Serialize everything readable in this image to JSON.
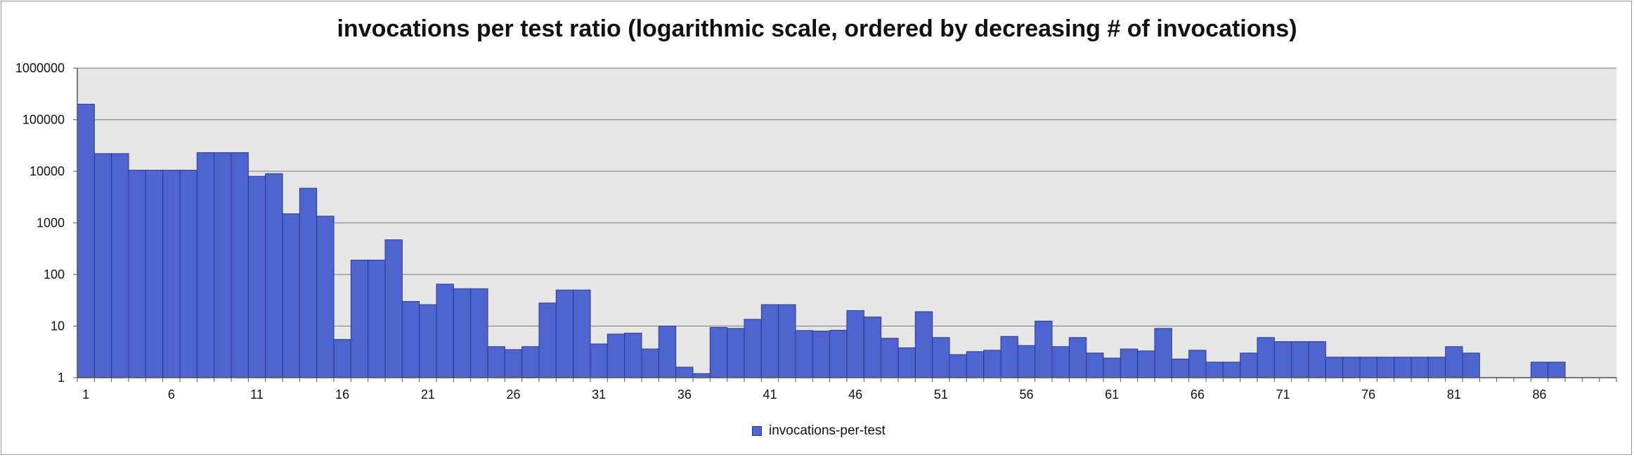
{
  "chart_data": {
    "type": "bar",
    "title": "invocations per test ratio (logarithmic scale, ordered by decreasing # of invocations)",
    "xlabel": "",
    "ylabel": "",
    "y_scale": "log",
    "ylim": [
      1,
      1000000
    ],
    "y_tick_labels": [
      "1",
      "10",
      "100",
      "1000",
      "10000",
      "100000",
      "1000000"
    ],
    "x_tick_labels": [
      "1",
      "6",
      "11",
      "16",
      "21",
      "26",
      "31",
      "36",
      "41",
      "46",
      "51",
      "56",
      "61",
      "66",
      "71",
      "76",
      "81",
      "86"
    ],
    "categories": [
      1,
      2,
      3,
      4,
      5,
      6,
      7,
      8,
      9,
      10,
      11,
      12,
      13,
      14,
      15,
      16,
      17,
      18,
      19,
      20,
      21,
      22,
      23,
      24,
      25,
      26,
      27,
      28,
      29,
      30,
      31,
      32,
      33,
      34,
      35,
      36,
      37,
      38,
      39,
      40,
      41,
      42,
      43,
      44,
      45,
      46,
      47,
      48,
      49,
      50,
      51,
      52,
      53,
      54,
      55,
      56,
      57,
      58,
      59,
      60,
      61,
      62,
      63,
      64,
      65,
      66,
      67,
      68,
      69,
      70,
      71,
      72,
      73,
      74,
      75,
      76,
      77,
      78,
      79,
      80,
      81,
      82,
      83,
      84,
      85,
      86,
      87,
      88,
      89,
      90
    ],
    "grid": true,
    "background": "#e6e6e6",
    "bar_color": "#4e64cf",
    "legend_position": "bottom",
    "series": [
      {
        "name": "invocations-per-test",
        "values": [
          200000,
          22000,
          22000,
          10500,
          10500,
          10500,
          10500,
          23000,
          23000,
          23000,
          8000,
          9000,
          1500,
          4700,
          1350,
          5.5,
          190,
          190,
          470,
          30,
          26,
          65,
          53,
          53,
          4,
          3.5,
          4,
          28,
          50,
          50,
          4.5,
          7,
          7.3,
          3.6,
          10,
          1.6,
          1.2,
          9.4,
          9,
          13.5,
          26,
          26,
          8.2,
          8,
          8.3,
          20,
          15,
          5.8,
          3.8,
          19,
          6,
          2.8,
          3.2,
          3.4,
          6.3,
          4.2,
          12.5,
          4,
          6,
          3,
          2.4,
          3.6,
          3.3,
          9,
          2.3,
          3.4,
          2,
          2,
          3,
          6,
          5,
          5,
          5,
          2.5,
          2.5,
          2.5,
          2.5,
          2.5,
          2.5,
          2.5,
          4,
          3,
          null,
          null,
          null,
          2,
          2,
          null,
          null,
          null
        ]
      }
    ]
  }
}
